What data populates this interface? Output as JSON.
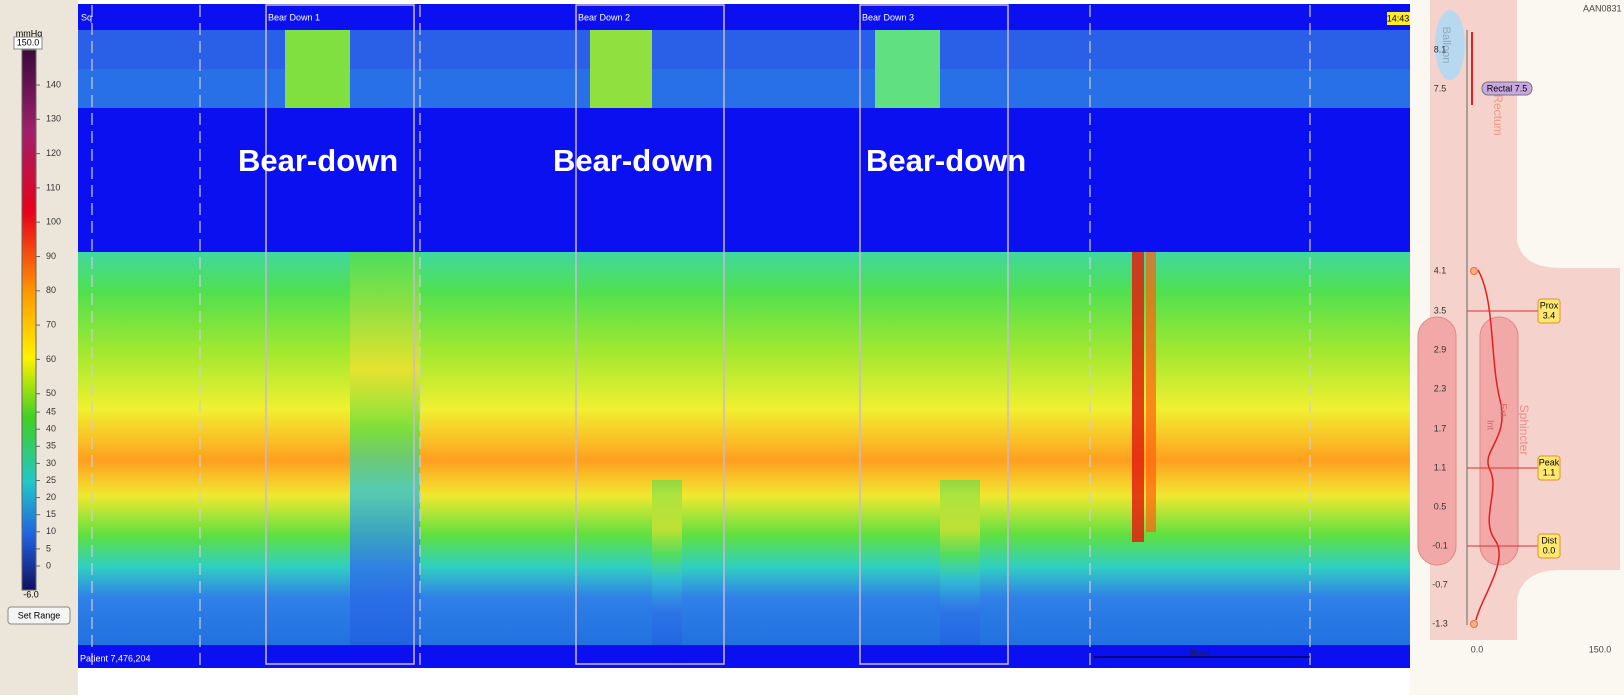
{
  "scale": {
    "unit": "mmHg",
    "max": "150.0",
    "min": "-6.0",
    "labels": [
      "140",
      "130",
      "120",
      "110",
      "100",
      "90",
      "80",
      "70",
      "60",
      "50",
      "45",
      "40",
      "35",
      "30",
      "25",
      "20",
      "15",
      "10",
      "5",
      "0"
    ],
    "button": "Set Range"
  },
  "plot": {
    "corner_label": "Sq",
    "events": [
      "Bear Down 1",
      "Bear Down 2",
      "Bear Down 3"
    ],
    "time": "14:43",
    "annotations": [
      "Bear-down",
      "Bear-down",
      "Bear-down"
    ],
    "patient": "Patient 7,476,204",
    "scale_bar": "30 sec"
  },
  "anatomy": {
    "id": "AAN0831",
    "regions": {
      "balloon": "Balloon",
      "rectum": "Rectum",
      "sphincter": "Sphincter",
      "internal": "Int",
      "external": "Ext"
    },
    "rectal_marker": "Rectal 7.5",
    "depths": [
      "8.1",
      "7.5",
      "4.1",
      "3.5",
      "2.9",
      "2.3",
      "1.7",
      "1.1",
      "0.5",
      "-0.1",
      "-0.7",
      "-1.3"
    ],
    "markers": [
      {
        "label": "Prox",
        "value": "3.4"
      },
      {
        "label": "Peak",
        "value": "1.1"
      },
      {
        "label": "Dist",
        "value": "0.0"
      }
    ],
    "x_axis": [
      "0.0",
      "150.0"
    ]
  }
}
